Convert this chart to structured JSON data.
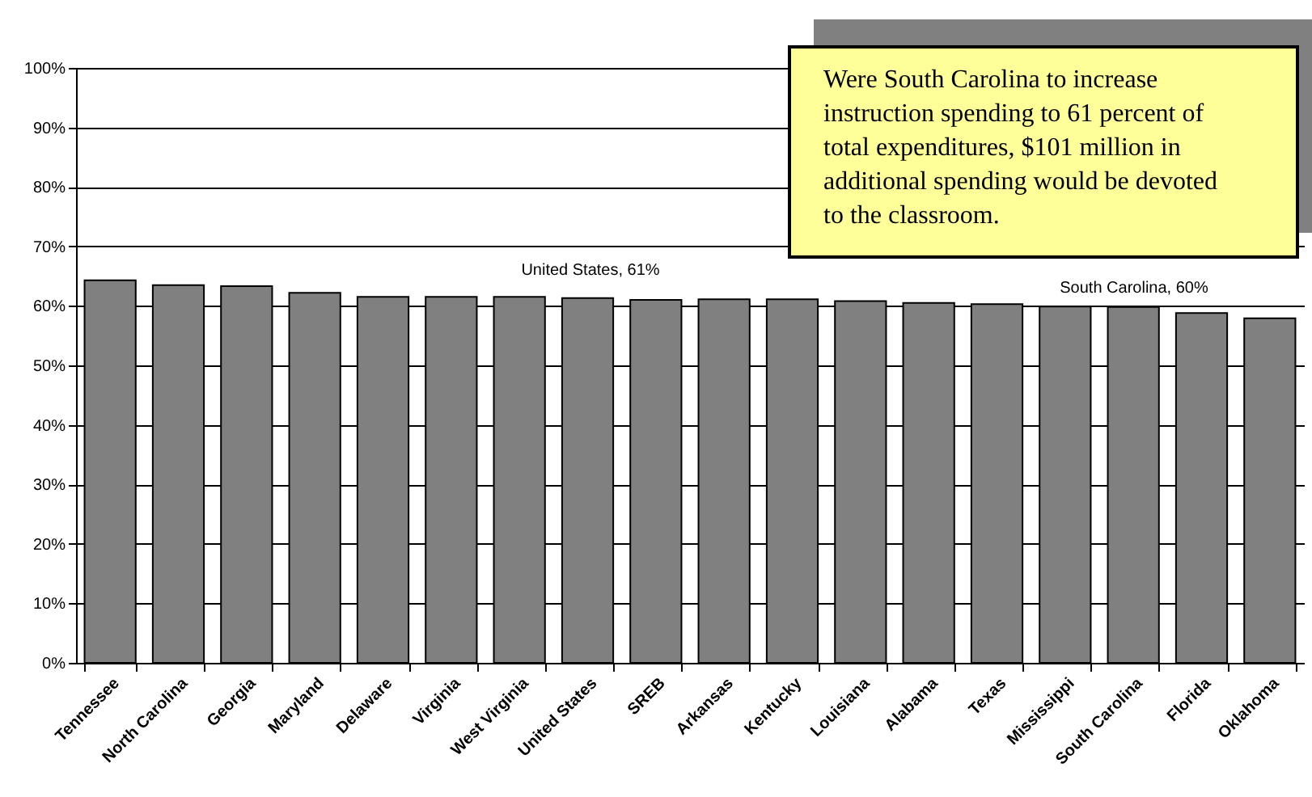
{
  "chart_data": {
    "type": "bar",
    "categories": [
      "Tennessee",
      "North Carolina",
      "Georgia",
      "Maryland",
      "Delaware",
      "Virginia",
      "West Virginia",
      "United States",
      "SREB",
      "Arkansas",
      "Kentucky",
      "Louisiana",
      "Alabama",
      "Texas",
      "Mississippi",
      "South Carolina",
      "Florida",
      "Oklahoma"
    ],
    "values": [
      64.3,
      63.5,
      63.3,
      62.2,
      61.5,
      61.5,
      61.5,
      61.3,
      61.0,
      61.1,
      61.1,
      60.8,
      60.5,
      60.3,
      59.9,
      59.8,
      58.8,
      57.9
    ],
    "color": "#808080",
    "ylim": [
      0,
      100
    ],
    "yticks": [
      {
        "value": 0,
        "label": "0%"
      },
      {
        "value": 10,
        "label": "10%"
      },
      {
        "value": 20,
        "label": "20%"
      },
      {
        "value": 30,
        "label": "30%"
      },
      {
        "value": 40,
        "label": "40%"
      },
      {
        "value": 50,
        "label": "50%"
      },
      {
        "value": 60,
        "label": "60%"
      },
      {
        "value": 70,
        "label": "70%"
      },
      {
        "value": 80,
        "label": "80%"
      },
      {
        "value": 90,
        "label": "90%"
      },
      {
        "value": 100,
        "label": "100%"
      }
    ],
    "grid": "y",
    "annotations": [
      "United States, 61%",
      "South Carolina, 60%",
      "Were South Carolina to increase instruction spending to 61 percent of total expenditures, $101 million in additional spending would be devoted to the classroom."
    ]
  }
}
